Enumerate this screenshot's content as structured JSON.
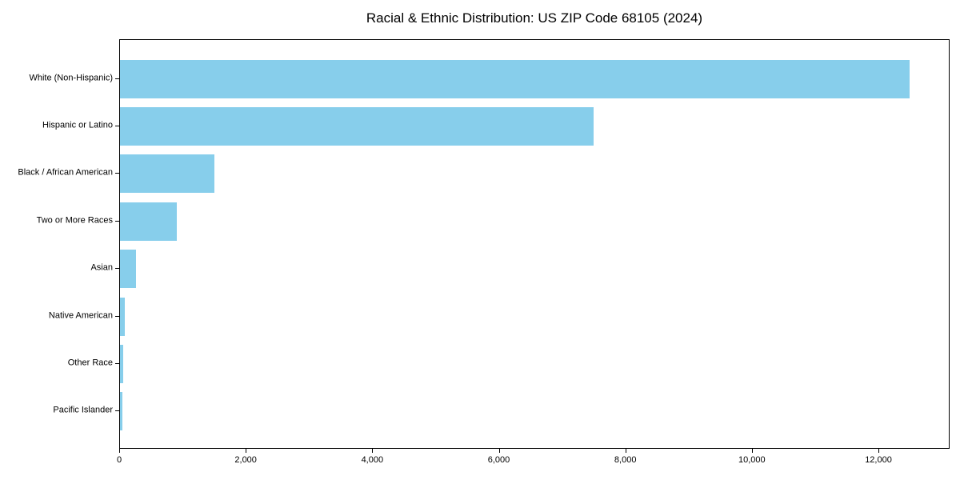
{
  "chart_data": {
    "type": "bar",
    "orientation": "horizontal",
    "title": "Racial & Ethnic Distribution: US ZIP Code 68105 (2024)",
    "categories": [
      "White (Non-Hispanic)",
      "Hispanic or Latino",
      "Black / African American",
      "Two or More Races",
      "Asian",
      "Native American",
      "Other Race",
      "Pacific Islander"
    ],
    "values": [
      12500,
      7500,
      1500,
      900,
      250,
      75,
      55,
      40
    ],
    "xlabel": "",
    "ylabel": "",
    "xlim": [
      0,
      13125
    ],
    "xticks": [
      0,
      2000,
      4000,
      6000,
      8000,
      10000,
      12000
    ],
    "xtick_labels": [
      "0",
      "2,000",
      "4,000",
      "6,000",
      "8,000",
      "10,000",
      "12,000"
    ],
    "bar_color": "#87CEEB",
    "grid": false,
    "legend_position": "none"
  }
}
